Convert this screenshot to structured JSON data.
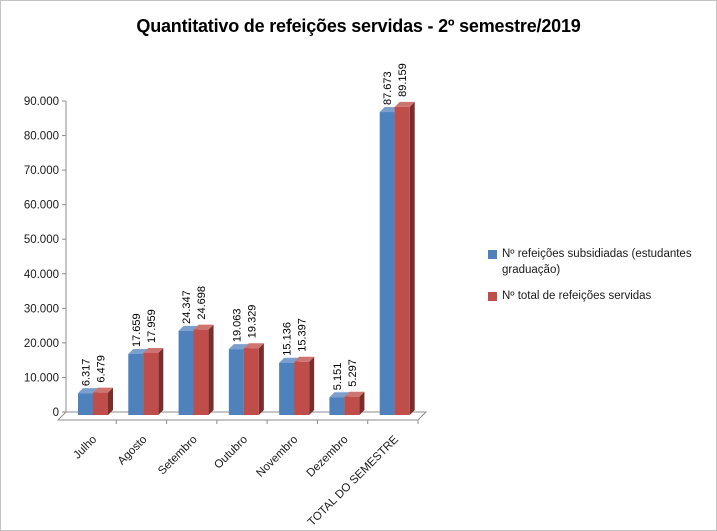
{
  "title": "Quantitativo de refeições servidas - 2º semestre/2019",
  "chart_data": {
    "type": "bar",
    "style": "3d-clustered-column",
    "title": "Quantitativo de refeições servidas - 2º semestre/2019",
    "categories": [
      "Julho",
      "Agosto",
      "Setembro",
      "Outubro",
      "Novembro",
      "Dezembro",
      "TOTAL DO SEMESTRE"
    ],
    "series": [
      {
        "name": "Nº refeições subsidiadas (estudantes graduação)",
        "color": "#4F81BD",
        "color_top": "#7BA0CE",
        "color_side": "#31557F",
        "values": [
          6317,
          17659,
          24347,
          19063,
          15136,
          5151,
          87673
        ],
        "labels": [
          "6.317",
          "17.659",
          "24.347",
          "19.063",
          "15.136",
          "5.151",
          "87.673"
        ]
      },
      {
        "name": "Nº total  de refeições servidas",
        "color": "#BF4E4B",
        "color_top": "#CE7572",
        "color_side": "#7A2E2C",
        "values": [
          6479,
          17959,
          24698,
          19329,
          15397,
          5297,
          89159
        ],
        "labels": [
          "6.479",
          "17.959",
          "24.698",
          "19.329",
          "15.397",
          "5.297",
          "89.159"
        ]
      }
    ],
    "ylim": [
      0,
      90000
    ],
    "ytick_step": 10000,
    "ytick_labels": [
      "0",
      "10.000",
      "20.000",
      "30.000",
      "40.000",
      "50.000",
      "60.000",
      "70.000",
      "80.000",
      "90.000"
    ],
    "grid": false,
    "legend_position": "right",
    "axis_color": "#8C8C8C",
    "label_color": "#1a1a1a"
  }
}
